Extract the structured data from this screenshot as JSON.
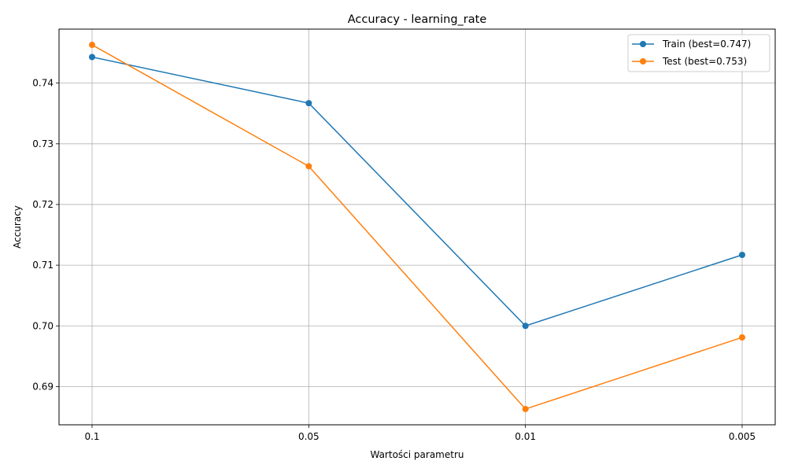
{
  "chart_data": {
    "type": "line",
    "title": "Accuracy - learning_rate",
    "xlabel": "Wartości parametru",
    "ylabel": "Accuracy",
    "categories": [
      "0.1",
      "0.05",
      "0.01",
      "0.005"
    ],
    "series": [
      {
        "name": "Train (best=0.747)",
        "color": "#1f77b4",
        "values": [
          0.7443,
          0.7367,
          0.7,
          0.7117
        ]
      },
      {
        "name": "Test (best=0.753)",
        "color": "#ff7f0e",
        "values": [
          0.7463,
          0.7263,
          0.6863,
          0.6981
        ]
      }
    ],
    "ylim": [
      0.6837,
      0.7489
    ],
    "yticks": [
      "0.69",
      "0.70",
      "0.71",
      "0.72",
      "0.73",
      "0.74"
    ],
    "grid": true,
    "legend": "top-right"
  }
}
